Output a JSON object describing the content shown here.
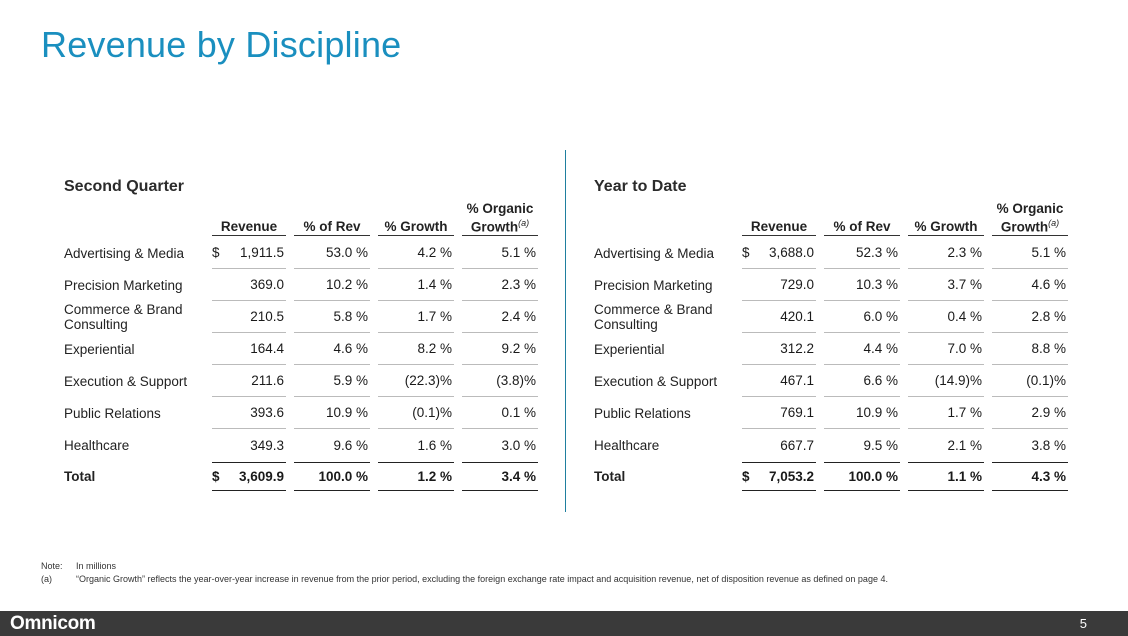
{
  "title": "Revenue by Discipline",
  "columns": {
    "revenue": "Revenue",
    "pct_rev": "% of Rev",
    "growth": "% Growth",
    "organic_line1": "% Organic",
    "organic_line2": "Growth",
    "organic_sup": "(a)"
  },
  "second_quarter": {
    "title": "Second Quarter",
    "rows": [
      {
        "label": "Advertising & Media",
        "currency": "$",
        "revenue": "1,911.5",
        "pct_rev": "53.0 %",
        "growth": "4.2 %",
        "organic": "5.1 %"
      },
      {
        "label": "Precision Marketing",
        "currency": "",
        "revenue": "369.0",
        "pct_rev": "10.2 %",
        "growth": "1.4 %",
        "organic": "2.3 %"
      },
      {
        "label": "Commerce & Brand Consulting",
        "currency": "",
        "revenue": "210.5",
        "pct_rev": "5.8 %",
        "growth": "1.7 %",
        "organic": "2.4 %"
      },
      {
        "label": "Experiential",
        "currency": "",
        "revenue": "164.4",
        "pct_rev": "4.6 %",
        "growth": "8.2 %",
        "organic": "9.2 %"
      },
      {
        "label": "Execution & Support",
        "currency": "",
        "revenue": "211.6",
        "pct_rev": "5.9 %",
        "growth": "(22.3)%",
        "organic": "(3.8)%"
      },
      {
        "label": "Public Relations",
        "currency": "",
        "revenue": "393.6",
        "pct_rev": "10.9 %",
        "growth": "(0.1)%",
        "organic": "0.1 %"
      },
      {
        "label": "Healthcare",
        "currency": "",
        "revenue": "349.3",
        "pct_rev": "9.6 %",
        "growth": "1.6 %",
        "organic": "3.0 %"
      }
    ],
    "total": {
      "label": "Total",
      "currency": "$",
      "revenue": "3,609.9",
      "pct_rev": "100.0 %",
      "growth": "1.2 %",
      "organic": "3.4 %"
    }
  },
  "year_to_date": {
    "title": "Year to Date",
    "rows": [
      {
        "label": "Advertising & Media",
        "currency": "$",
        "revenue": "3,688.0",
        "pct_rev": "52.3 %",
        "growth": "2.3 %",
        "organic": "5.1 %"
      },
      {
        "label": "Precision Marketing",
        "currency": "",
        "revenue": "729.0",
        "pct_rev": "10.3 %",
        "growth": "3.7 %",
        "organic": "4.6 %"
      },
      {
        "label": "Commerce & Brand Consulting",
        "currency": "",
        "revenue": "420.1",
        "pct_rev": "6.0 %",
        "growth": "0.4 %",
        "organic": "2.8 %"
      },
      {
        "label": "Experiential",
        "currency": "",
        "revenue": "312.2",
        "pct_rev": "4.4 %",
        "growth": "7.0 %",
        "organic": "8.8 %"
      },
      {
        "label": "Execution & Support",
        "currency": "",
        "revenue": "467.1",
        "pct_rev": "6.6 %",
        "growth": "(14.9)%",
        "organic": "(0.1)%"
      },
      {
        "label": "Public Relations",
        "currency": "",
        "revenue": "769.1",
        "pct_rev": "10.9 %",
        "growth": "1.7 %",
        "organic": "2.9 %"
      },
      {
        "label": "Healthcare",
        "currency": "",
        "revenue": "667.7",
        "pct_rev": "9.5 %",
        "growth": "2.1 %",
        "organic": "3.8 %"
      }
    ],
    "total": {
      "label": "Total",
      "currency": "$",
      "revenue": "7,053.2",
      "pct_rev": "100.0 %",
      "growth": "1.1 %",
      "organic": "4.3 %"
    }
  },
  "notes": {
    "note_tag": "Note:",
    "note_text": "In millions",
    "a_tag": "(a)",
    "a_text": "“Organic Growth” reflects the year-over-year increase in revenue from the prior period, excluding the foreign exchange rate impact and acquisition revenue, net of disposition revenue as defined on page 4."
  },
  "footer": {
    "logo": "Omnicom",
    "page_number": "5"
  },
  "colors": {
    "title": "#1a8fbf",
    "divider": "#1f7f9f",
    "footer_bg": "#3a3a3a"
  }
}
